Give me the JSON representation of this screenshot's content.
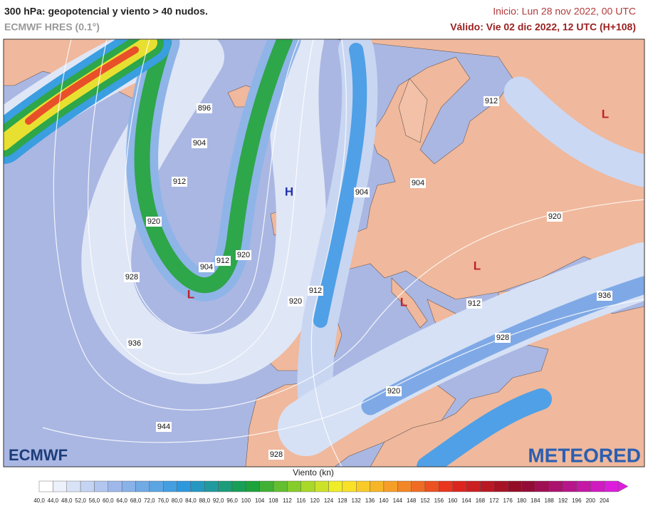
{
  "header": {
    "title": "300 hPa: geopotencial y viento > 40 nudos.",
    "subtitle": "ECMWF HRES (0.1°)",
    "init": "Inicio: Lun 28 nov 2022, 00 UTC",
    "valid": "Válido: Vie 02 dic 2022, 12 UTC (H+108)"
  },
  "map": {
    "contour_labels": [
      896,
      904,
      912,
      920,
      928,
      936,
      944,
      904,
      912,
      920,
      920,
      912,
      904,
      904,
      912,
      920,
      912,
      928,
      936,
      920,
      928
    ],
    "pressure_centers": [
      "L",
      "L",
      "L",
      "L",
      "H"
    ]
  },
  "logos": {
    "left": "ECMWF",
    "right": "METEORED"
  },
  "colorbar": {
    "label": "Viento (kn)",
    "ticks": [
      "40,0",
      "44,0",
      "48,0",
      "52,0",
      "56,0",
      "60,0",
      "64,0",
      "68,0",
      "72,0",
      "76,0",
      "80,0",
      "84,0",
      "88,0",
      "92,0",
      "96,0",
      "100",
      "104",
      "108",
      "112",
      "116",
      "120",
      "124",
      "128",
      "132",
      "136",
      "140",
      "144",
      "148",
      "152",
      "156",
      "160",
      "164",
      "168",
      "172",
      "176",
      "180",
      "184",
      "188",
      "192",
      "196",
      "200",
      "204"
    ]
  }
}
